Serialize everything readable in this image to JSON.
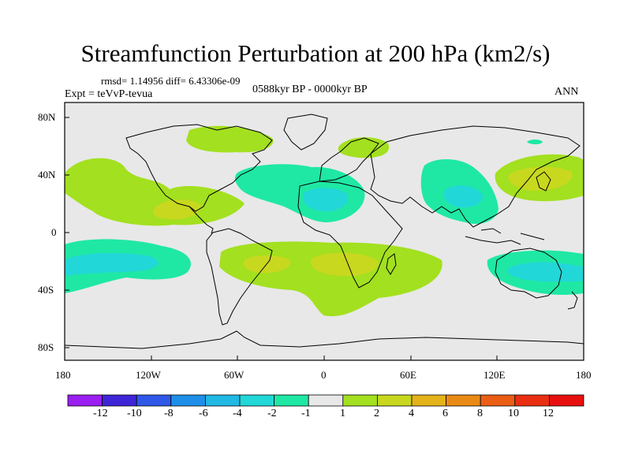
{
  "title": "Streamfunction Perturbation at 200 hPa (km2/s)",
  "stats": "rmsd= 1.14956 diff= 6.43306e-09",
  "experiment": "Expt = teVvP-tevua",
  "period": "0588kyr BP - 0000kyr BP",
  "season": "ANN",
  "map": {
    "projection": "cylindrical-equidistant",
    "lon_range": [
      -180,
      180
    ],
    "lat_range": [
      -90,
      90
    ],
    "background_color": "#e8e8e8",
    "lat_labels": [
      "80N",
      "40N",
      "0",
      "40S",
      "80S"
    ],
    "lon_labels": [
      "180",
      "120W",
      "60W",
      "0",
      "60E",
      "120E",
      "180"
    ]
  },
  "colorbar": {
    "labels": [
      "-12",
      "-10",
      "-8",
      "-6",
      "-4",
      "-2",
      "-1",
      "1",
      "2",
      "4",
      "6",
      "8",
      "10",
      "12"
    ],
    "colors": [
      "#9a1ff0",
      "#3f25d8",
      "#2f58e8",
      "#1e8fe8",
      "#21b8e4",
      "#22d7d7",
      "#1fe8a4",
      "#e8e8e8",
      "#a3e01f",
      "#c8d81f",
      "#e4b319",
      "#ea8a16",
      "#ea5e14",
      "#ea2e12",
      "#e80f0f"
    ]
  }
}
